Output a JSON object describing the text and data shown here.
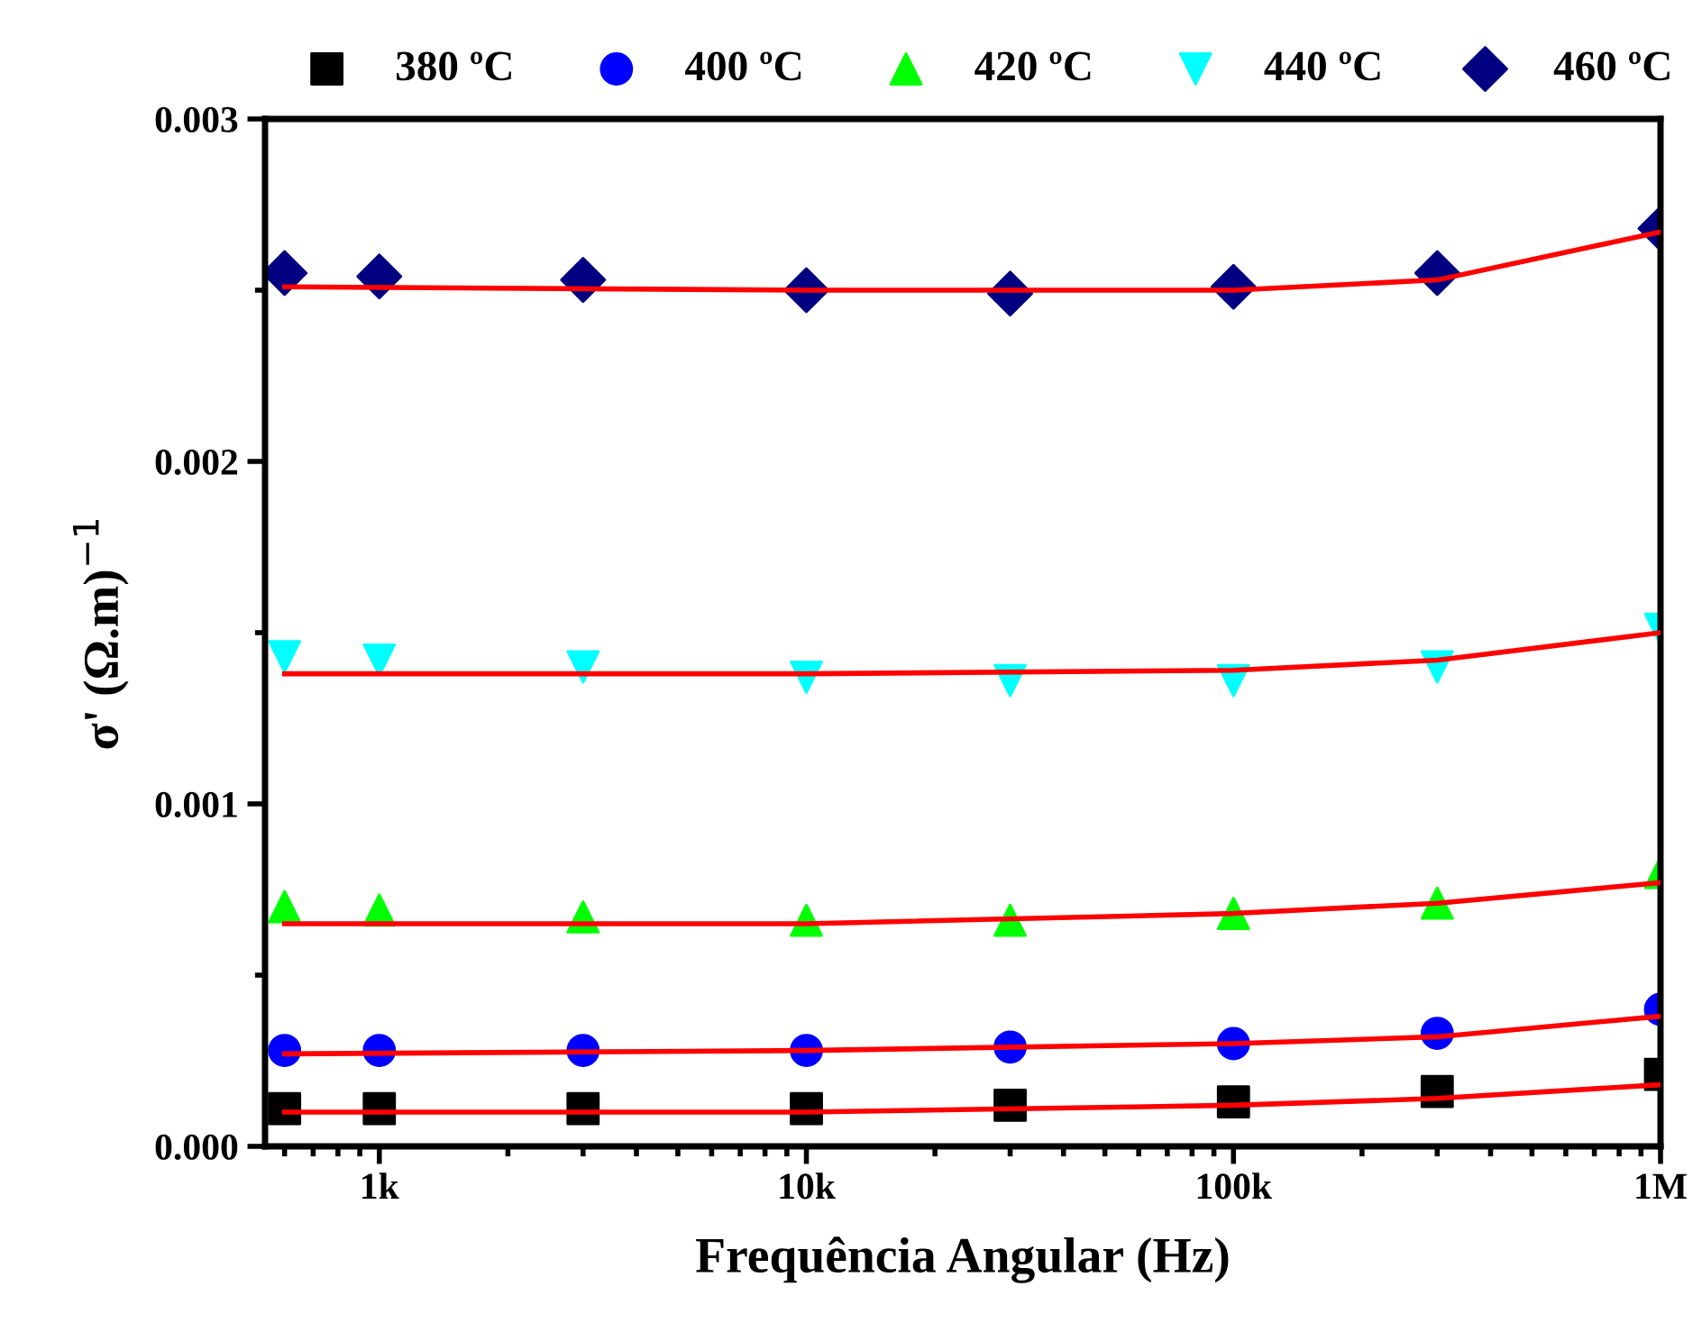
{
  "chart_data": {
    "type": "scatter",
    "xlabel": "Frequência Angular (Hz)",
    "ylabel": "σ' (Ω.m)$^{−1}$",
    "log": "x",
    "xlim": [
      540,
      1000000
    ],
    "xticks": [
      {
        "value": 1000,
        "label": "1k"
      },
      {
        "value": 10000,
        "label": "10k"
      },
      {
        "value": 100000,
        "label": "100k"
      },
      {
        "value": 1000000,
        "label": "1M"
      }
    ],
    "ylim": [
      0,
      0.003
    ],
    "yticks": [
      {
        "value": 0,
        "label": "0.000"
      },
      {
        "value": 0.001,
        "label": "0.001"
      },
      {
        "value": 0.002,
        "label": "0.002"
      },
      {
        "value": 0.003,
        "label": "0.003"
      }
    ],
    "legend": "top",
    "grid": false,
    "series": [
      {
        "name": "380 ºC",
        "color": "#000000",
        "marker": "square",
        "x": [
          600,
          1000,
          3000,
          10000,
          30000,
          100000,
          300000,
          1000000
        ],
        "values": [
          0.00011,
          0.00011,
          0.00011,
          0.00011,
          0.00012,
          0.00013,
          0.00016,
          0.00021
        ]
      },
      {
        "name": "400 ºC",
        "color": "#0000ff",
        "marker": "circle",
        "x": [
          600,
          1000,
          3000,
          10000,
          30000,
          100000,
          300000,
          1000000
        ],
        "values": [
          0.00028,
          0.00028,
          0.00028,
          0.00028,
          0.00029,
          0.0003,
          0.00033,
          0.0004
        ]
      },
      {
        "name": "420 ºC",
        "color": "#00ff00",
        "marker": "triangle",
        "x": [
          600,
          1000,
          3000,
          10000,
          30000,
          100000,
          300000,
          1000000
        ],
        "values": [
          0.0007,
          0.00069,
          0.00067,
          0.00066,
          0.00066,
          0.00068,
          0.00071,
          0.0008
        ]
      },
      {
        "name": "440 ºC",
        "color": "#00ffff",
        "marker": "triangle_down",
        "x": [
          600,
          1000,
          3000,
          10000,
          30000,
          100000,
          300000,
          1000000
        ],
        "values": [
          0.00143,
          0.00142,
          0.0014,
          0.00137,
          0.00136,
          0.00136,
          0.0014,
          0.00151
        ]
      },
      {
        "name": "460 ºC",
        "color": "#000080",
        "marker": "diamond",
        "x": [
          600,
          1000,
          3000,
          10000,
          30000,
          100000,
          300000,
          1000000
        ],
        "values": [
          0.00255,
          0.00254,
          0.00253,
          0.0025,
          0.00249,
          0.00251,
          0.00255,
          0.00268
        ]
      },
      {
        "type": "line",
        "color": "#ff0000",
        "x": [
          600,
          10000,
          100000,
          300000,
          1000000
        ],
        "values": [
          0.0001,
          0.0001,
          0.00012,
          0.00014,
          0.00018
        ]
      },
      {
        "type": "line",
        "color": "#ff0000",
        "x": [
          600,
          10000,
          100000,
          300000,
          1000000
        ],
        "values": [
          0.00027,
          0.00028,
          0.0003,
          0.00032,
          0.00038
        ]
      },
      {
        "type": "line",
        "color": "#ff0000",
        "x": [
          600,
          10000,
          100000,
          300000,
          1000000
        ],
        "values": [
          0.00065,
          0.00065,
          0.00068,
          0.00071,
          0.00077
        ]
      },
      {
        "type": "line",
        "color": "#ff0000",
        "x": [
          600,
          10000,
          100000,
          300000,
          1000000
        ],
        "values": [
          0.00138,
          0.00138,
          0.00139,
          0.00142,
          0.0015
        ]
      },
      {
        "type": "line",
        "color": "#ff0000",
        "x": [
          600,
          10000,
          100000,
          300000,
          1000000
        ],
        "values": [
          0.00251,
          0.0025,
          0.0025,
          0.00253,
          0.00267
        ]
      }
    ]
  }
}
